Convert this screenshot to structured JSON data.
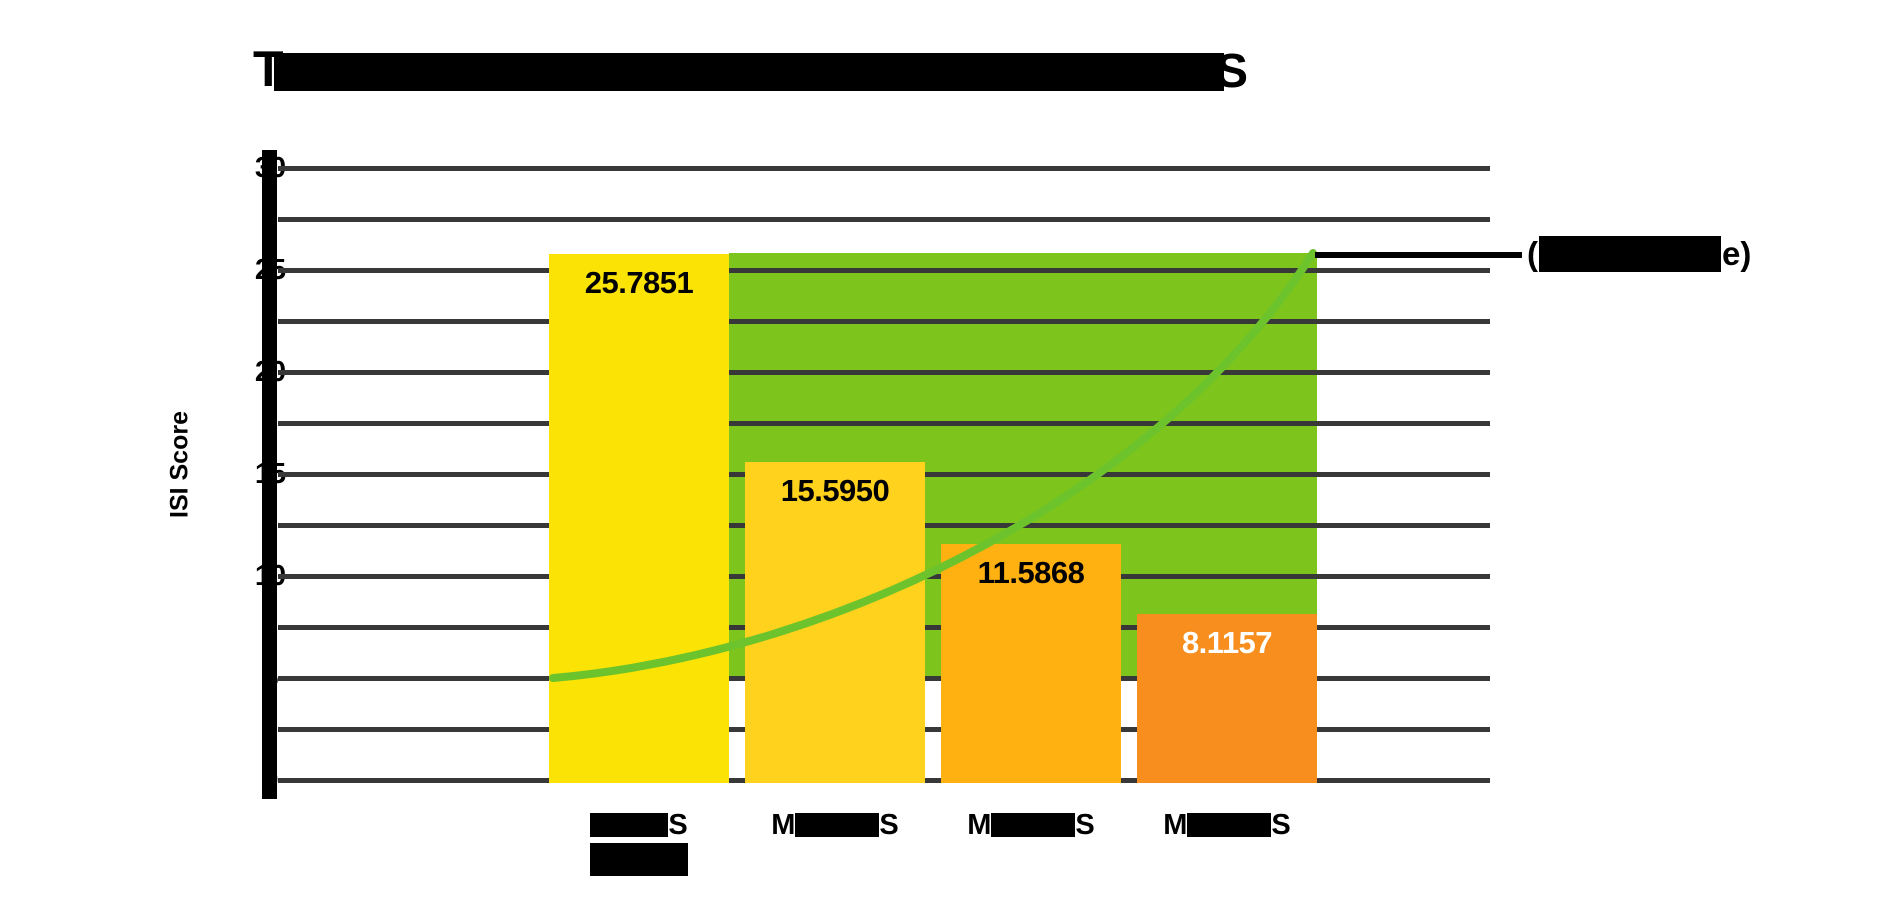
{
  "title": {
    "redacted": true,
    "visible_first_letter": "T",
    "visible_last_letter": "S",
    "note": "title text obscured by solid black box"
  },
  "chart_data": {
    "type": "bar",
    "ylabel": "ISI Score",
    "ylim": [
      0,
      30
    ],
    "yticks": [
      "0",
      "5",
      "10",
      "15",
      "20",
      "25",
      "30"
    ],
    "gridline_step": 2.5,
    "grid": true,
    "categories": [
      {
        "visible_prefix": "",
        "visible_suffix": "S",
        "redacted": true,
        "has_second_line_redaction": true
      },
      {
        "visible_prefix": "M",
        "visible_suffix": "S",
        "redacted": true,
        "has_second_line_redaction": false
      },
      {
        "visible_prefix": "M",
        "visible_suffix": "S",
        "redacted": true,
        "has_second_line_redaction": false
      },
      {
        "visible_prefix": "M",
        "visible_suffix": "S",
        "redacted": true,
        "has_second_line_redaction": false
      }
    ],
    "values": [
      25.7851,
      15.595,
      11.5868,
      8.1157
    ],
    "value_labels": [
      "25.7851",
      "15.5950",
      "11.5868",
      "8.1157"
    ],
    "value_label_colors": [
      "#000000",
      "#000000",
      "#000000",
      "#ffffff"
    ],
    "bar_colors": [
      "#FBE306",
      "#FFD21E",
      "#FFB112",
      "#F78E1E"
    ],
    "band": {
      "y_from": 5,
      "y_to": 25.85,
      "x_from_bar": 0,
      "x_to_bar": 3,
      "color": "#7DC51D",
      "note": "green zone spanning from right edge of bar 1 to right edge of bar 4"
    },
    "trend_curve": {
      "color": "#6CC32B",
      "start_value": 5.0,
      "end_value": 25.85,
      "shape": "accelerating upward curve from left edge of bar 1 to top-right corner of green band"
    },
    "annotation": {
      "redacted": true,
      "visible_prefix": "(",
      "visible_suffix": "e)",
      "leader_line_to_band_top": true
    },
    "legend_position": "right of plot at green band top"
  },
  "colors": {
    "gridline": "#383838",
    "axis": "#000000",
    "background": "#ffffff"
  }
}
